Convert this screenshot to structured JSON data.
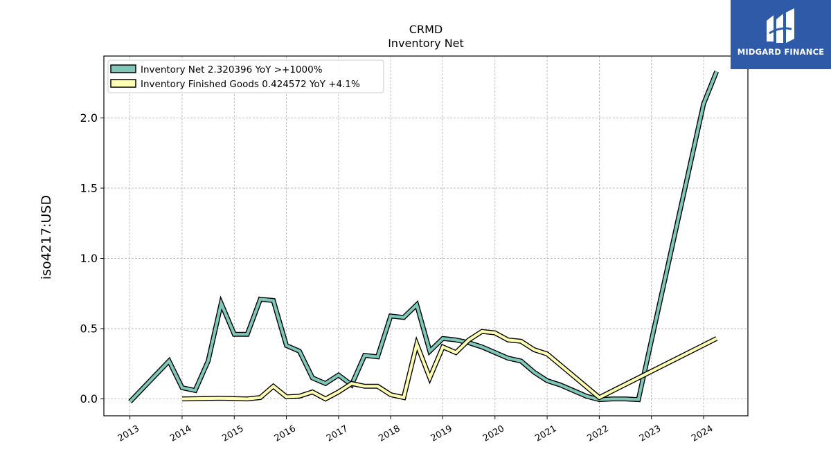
{
  "logo": {
    "text": "MIDGARD FINANCE"
  },
  "chart_data": {
    "type": "line",
    "title": "CRMD",
    "subtitle": "Inventory Net",
    "xlabel": "",
    "ylabel": "iso4217:USD",
    "xlim": [
      2012.5,
      2024.85
    ],
    "ylim": [
      -0.12,
      2.44
    ],
    "yticks": [
      0.0,
      0.5,
      1.0,
      1.5,
      2.0
    ],
    "ytick_labels": [
      "0.0",
      "0.5",
      "1.0",
      "1.5",
      "2.0"
    ],
    "xticks": [
      2013,
      2014,
      2015,
      2016,
      2017,
      2018,
      2019,
      2020,
      2021,
      2022,
      2023,
      2024
    ],
    "xtick_labels": [
      "2013",
      "2014",
      "2015",
      "2016",
      "2017",
      "2018",
      "2019",
      "2020",
      "2021",
      "2022",
      "2023",
      "2024"
    ],
    "grid": true,
    "legend_position": "top-left",
    "series": [
      {
        "name": "Inventory Net  2.320396 YoY >+1000%",
        "color": "#7fc7b9",
        "x": [
          2013.0,
          2013.75,
          2014.0,
          2014.25,
          2014.5,
          2014.75,
          2015.0,
          2015.25,
          2015.5,
          2015.75,
          2016.0,
          2016.25,
          2016.5,
          2016.75,
          2017.0,
          2017.25,
          2017.5,
          2017.75,
          2018.0,
          2018.25,
          2018.5,
          2018.75,
          2019.0,
          2019.25,
          2019.5,
          2019.75,
          2020.0,
          2020.25,
          2020.5,
          2020.75,
          2021.0,
          2021.25,
          2021.5,
          2021.75,
          2022.0,
          2022.25,
          2022.5,
          2022.75,
          2024.0,
          2024.25
        ],
        "values": [
          -0.02,
          0.27,
          0.08,
          0.06,
          0.27,
          0.68,
          0.46,
          0.46,
          0.71,
          0.7,
          0.38,
          0.34,
          0.15,
          0.11,
          0.17,
          0.1,
          0.31,
          0.3,
          0.59,
          0.58,
          0.67,
          0.34,
          0.43,
          0.42,
          0.4,
          0.37,
          0.33,
          0.29,
          0.27,
          0.19,
          0.13,
          0.1,
          0.06,
          0.02,
          -0.005,
          0.0,
          0.0,
          -0.005,
          2.1,
          2.33
        ]
      },
      {
        "name": "Inventory Finished Goods  0.424572 YoY +4.1%",
        "color": "#ffffb3",
        "x": [
          2014.0,
          2014.75,
          2015.25,
          2015.5,
          2015.75,
          2016.0,
          2016.25,
          2016.5,
          2016.75,
          2017.0,
          2017.25,
          2017.5,
          2017.75,
          2018.0,
          2018.25,
          2018.5,
          2018.75,
          2019.0,
          2019.25,
          2019.5,
          2019.75,
          2020.0,
          2020.25,
          2020.5,
          2020.75,
          2021.0,
          2022.0,
          2024.25
        ],
        "values": [
          0.0,
          0.005,
          0.0,
          0.01,
          0.09,
          0.015,
          0.02,
          0.05,
          0.0,
          0.05,
          0.11,
          0.09,
          0.09,
          0.03,
          0.01,
          0.39,
          0.15,
          0.37,
          0.33,
          0.42,
          0.48,
          0.47,
          0.42,
          0.41,
          0.35,
          0.32,
          0.01,
          0.43
        ]
      }
    ]
  }
}
